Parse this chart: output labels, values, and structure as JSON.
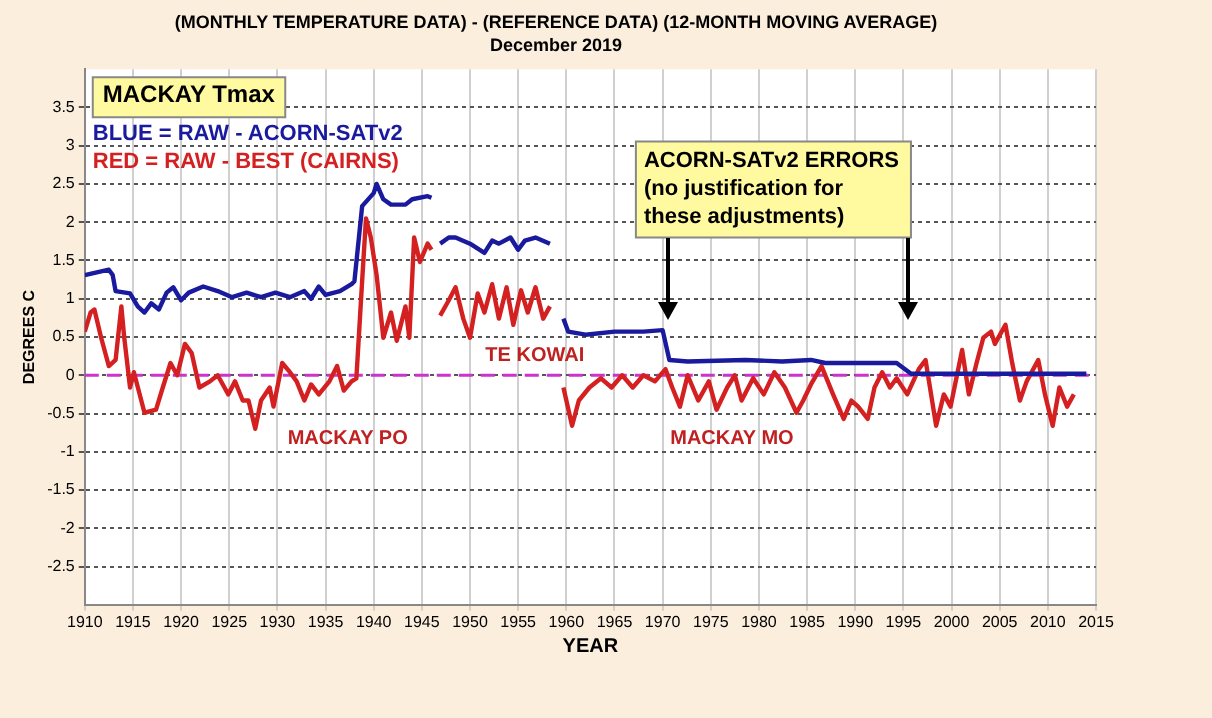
{
  "chart_data": {
    "type": "line",
    "title": "(MONTHLY TEMPERATURE DATA) - (REFERENCE DATA) (12-MONTH MOVING AVERAGE)",
    "subtitle": "December 2019",
    "xlabel": "YEAR",
    "ylabel": "DEGREES C",
    "xlim": [
      1910,
      2015
    ],
    "xticks": [
      1910,
      1915,
      1920,
      1925,
      1930,
      1935,
      1940,
      1945,
      1950,
      1955,
      1960,
      1965,
      1970,
      1975,
      1980,
      1985,
      1990,
      1995,
      2000,
      2005,
      2010,
      2015
    ],
    "ylim": [
      -3,
      4
    ],
    "yticks": [
      -2.5,
      -2,
      -1.5,
      -1,
      -0.5,
      0,
      0.5,
      1,
      1.5,
      2,
      2.5,
      3,
      3.5
    ],
    "grid": true,
    "marker": "none",
    "line_style": "solid",
    "legend": "top left",
    "ref_lines": [
      {
        "axis": "y",
        "value": 0,
        "color": "#cc33cc",
        "line_style": "dashed"
      }
    ],
    "annotations": [
      "MACKAY Tmax",
      "ACORN-SATv2 ERRORS\n(no justification for\nthese adjustments)",
      "MACKAY PO",
      "TE KOWAI",
      "MACKAY MO"
    ],
    "series": [
      {
        "name": "BLUE = RAW - ACORN-SATv2",
        "color": "#1a1a9e",
        "x": [
          1910,
          1912.5,
          1912.9,
          1913.2,
          1914.7,
          1915.5,
          1916.2,
          1916.9,
          1917.7,
          1918.5,
          1919.2,
          1920,
          1920.8,
          1922.3,
          1923.8,
          1925.3,
          1926.8,
          1928.3,
          1929.8,
          1931.3,
          1932.8,
          1933.5,
          1934.3,
          1935,
          1936.5,
          1937.7,
          1938,
          1938.8,
          1940,
          1940.3,
          1941,
          1941.8,
          1943.3,
          1944,
          1945.6,
          1946,
          1946.5,
          1946.9,
          1947.8,
          1948.5,
          1950,
          1951.5,
          1952.3,
          1953,
          1954.2,
          1955,
          1955.7,
          1956.8,
          1958.3,
          1959,
          1959.7,
          1960.2,
          1962,
          1965,
          1968,
          1970,
          1970.7,
          1972.6,
          1978.6,
          1982.4,
          1985.4,
          1986.9,
          1994.3,
          1995.8,
          2005,
          2014
        ],
        "values": [
          1.31,
          1.38,
          1.31,
          1.1,
          1.07,
          0.9,
          0.82,
          0.94,
          0.86,
          1.08,
          1.15,
          0.98,
          1.08,
          1.16,
          1.1,
          1.02,
          1.08,
          1.02,
          1.08,
          1.02,
          1.1,
          1,
          1.16,
          1.05,
          1.1,
          1.19,
          1.23,
          2.21,
          2.38,
          2.5,
          2.3,
          2.23,
          2.23,
          2.3,
          2.34,
          2.32,
          null,
          1.72,
          1.8,
          1.8,
          1.72,
          1.6,
          1.76,
          1.72,
          1.8,
          1.64,
          1.76,
          1.8,
          1.72,
          null,
          0.74,
          0.57,
          0.53,
          0.57,
          0.57,
          0.59,
          0.2,
          0.18,
          0.2,
          0.18,
          0.2,
          0.16,
          0.16,
          0.02,
          0.02,
          0.02
        ]
      },
      {
        "name": "RED = RAW - BEST (CAIRNS)",
        "color": "#d42020",
        "x": [
          1910,
          1910.6,
          1911,
          1911.7,
          1912.5,
          1913.2,
          1913.8,
          1914.1,
          1914.7,
          1915.1,
          1916.2,
          1917.4,
          1918.1,
          1918.9,
          1919.6,
          1920.4,
          1921.1,
          1921.9,
          1923,
          1923.8,
          1924.9,
          1925.6,
          1926.4,
          1927,
          1927.7,
          1928.3,
          1929.2,
          1929.6,
          1930.5,
          1931.3,
          1932,
          1932.8,
          1933.5,
          1934.3,
          1935.4,
          1936.2,
          1936.9,
          1937.7,
          1938.2,
          1938.8,
          1939.2,
          1939.7,
          1940.3,
          1941,
          1941.8,
          1942.4,
          1943.3,
          1943.7,
          1944.2,
          1944.8,
          1945.6,
          1946,
          1946.5,
          1946.9,
          1947.8,
          1948.5,
          1949.3,
          1950,
          1950.8,
          1951.5,
          1952.3,
          1953,
          1953.8,
          1954.5,
          1955.3,
          1956,
          1956.8,
          1957.6,
          1958.3,
          1959,
          1959.7,
          1960.6,
          1961.3,
          1962.4,
          1963.6,
          1964.7,
          1965.8,
          1966.9,
          1968,
          1969.2,
          1970.3,
          1971,
          1971.8,
          1972.6,
          1973.7,
          1974.8,
          1975.6,
          1976.7,
          1977.5,
          1978.2,
          1979.4,
          1980.5,
          1981.6,
          1982.7,
          1983.9,
          1984.6,
          1985.4,
          1986.5,
          1987.7,
          1988.8,
          1989.6,
          1990.3,
          1991.3,
          1992,
          1992.8,
          1993.6,
          1994.3,
          1995.4,
          1996.6,
          1997.3,
          1998.4,
          1999.2,
          1999.9,
          2001.1,
          2001.8,
          2002.6,
          2003.3,
          2004.1,
          2004.5,
          2005.6,
          2006.3,
          2007.1,
          2007.8,
          2009,
          2009.7,
          2010.5,
          2011.2,
          2012,
          2012.7
        ],
        "values": [
          0.57,
          0.82,
          0.86,
          0.49,
          0.12,
          0.2,
          0.9,
          0.49,
          -0.16,
          0.04,
          -0.49,
          -0.45,
          -0.16,
          0.16,
          0,
          0.41,
          0.29,
          -0.16,
          -0.08,
          0,
          -0.25,
          -0.08,
          -0.33,
          -0.33,
          -0.7,
          -0.33,
          -0.16,
          -0.41,
          0.16,
          0.04,
          -0.08,
          -0.33,
          -0.12,
          -0.25,
          -0.08,
          0.12,
          -0.2,
          -0.08,
          -0.04,
          1.23,
          2.05,
          1.8,
          1.31,
          0.49,
          0.82,
          0.45,
          0.9,
          0.49,
          1.8,
          1.48,
          1.72,
          1.64,
          null,
          0.78,
          0.98,
          1.15,
          0.74,
          0.49,
          1.07,
          0.82,
          1.19,
          0.74,
          1.15,
          0.66,
          1.11,
          0.82,
          1.15,
          0.74,
          0.9,
          null,
          -0.16,
          -0.66,
          -0.33,
          -0.16,
          -0.04,
          -0.16,
          0,
          -0.16,
          0,
          -0.08,
          0.08,
          -0.16,
          -0.41,
          0,
          -0.33,
          -0.08,
          -0.45,
          -0.16,
          0,
          -0.33,
          -0.04,
          -0.25,
          0.04,
          -0.16,
          -0.49,
          -0.33,
          -0.12,
          0.12,
          -0.25,
          -0.57,
          -0.33,
          -0.41,
          -0.57,
          -0.16,
          0.04,
          -0.16,
          -0.04,
          -0.25,
          0.08,
          0.2,
          -0.66,
          -0.25,
          -0.41,
          0.33,
          -0.25,
          0.16,
          0.49,
          0.57,
          0.41,
          0.66,
          0.16,
          -0.33,
          -0.08,
          0.2,
          -0.25,
          -0.66,
          -0.16,
          -0.41,
          -0.25
        ]
      }
    ]
  }
}
